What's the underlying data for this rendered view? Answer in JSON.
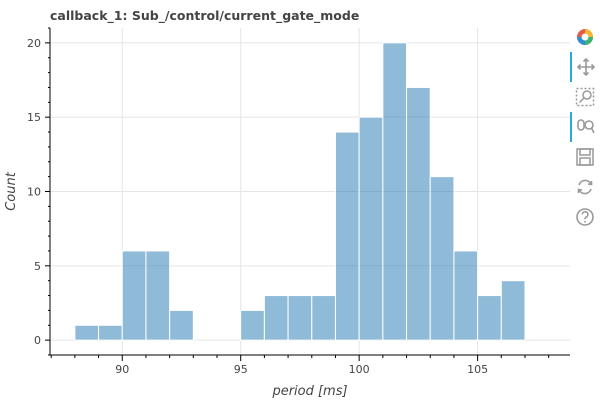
{
  "title": "callback_1: Sub_/control/current_gate_mode",
  "chart_data": {
    "type": "bar",
    "title": "callback_1: Sub_/control/current_gate_mode",
    "xlabel": "period [ms]",
    "ylabel": "Count",
    "bin_width": 1,
    "bins": [
      {
        "x0": 88,
        "x1": 89,
        "count": 1
      },
      {
        "x0": 89,
        "x1": 90,
        "count": 1
      },
      {
        "x0": 90,
        "x1": 91,
        "count": 6
      },
      {
        "x0": 91,
        "x1": 92,
        "count": 6
      },
      {
        "x0": 92,
        "x1": 93,
        "count": 2
      },
      {
        "x0": 93,
        "x1": 94,
        "count": 0
      },
      {
        "x0": 94,
        "x1": 95,
        "count": 0
      },
      {
        "x0": 95,
        "x1": 96,
        "count": 2
      },
      {
        "x0": 96,
        "x1": 97,
        "count": 3
      },
      {
        "x0": 97,
        "x1": 98,
        "count": 3
      },
      {
        "x0": 98,
        "x1": 99,
        "count": 3
      },
      {
        "x0": 99,
        "x1": 100,
        "count": 14
      },
      {
        "x0": 100,
        "x1": 101,
        "count": 15
      },
      {
        "x0": 101,
        "x1": 102,
        "count": 20
      },
      {
        "x0": 102,
        "x1": 103,
        "count": 17
      },
      {
        "x0": 103,
        "x1": 104,
        "count": 11
      },
      {
        "x0": 104,
        "x1": 105,
        "count": 6
      },
      {
        "x0": 105,
        "x1": 106,
        "count": 3
      },
      {
        "x0": 106,
        "x1": 107,
        "count": 4
      }
    ],
    "xlim": [
      86.95,
      108.9
    ],
    "ylim": [
      -1,
      21
    ],
    "xticks": [
      90,
      95,
      100,
      105
    ],
    "yticks": [
      0,
      5,
      10,
      15,
      20
    ],
    "grid": true,
    "bar_color": "#1f77b4",
    "bar_alpha": 0.5
  },
  "toolbar": {
    "tools": [
      {
        "name": "bokeh-logo-icon",
        "active": false
      },
      {
        "name": "pan-icon",
        "active": true
      },
      {
        "name": "box-zoom-icon",
        "active": false
      },
      {
        "name": "wheel-zoom-icon",
        "active": true
      },
      {
        "name": "save-icon",
        "active": false
      },
      {
        "name": "reset-icon",
        "active": false
      },
      {
        "name": "help-icon",
        "active": false
      }
    ]
  }
}
